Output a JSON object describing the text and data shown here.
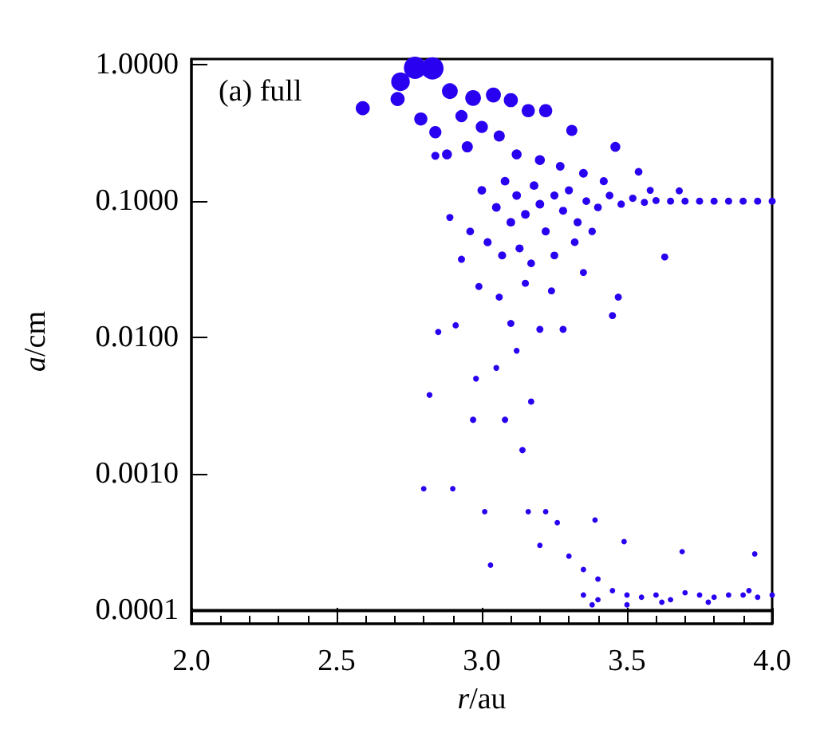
{
  "chart_data": {
    "type": "bubble",
    "xlabel": "r/au",
    "ylabel": "a/cm",
    "annotations": [
      "(a) full"
    ],
    "log": "y",
    "xlim": [
      2.0,
      4.0
    ],
    "xticks": [
      {
        "value": 2.0,
        "label": "2.0"
      },
      {
        "value": 2.5,
        "label": "2.5"
      },
      {
        "value": 3.0,
        "label": "3.0"
      },
      {
        "value": 3.5,
        "label": "3.5"
      },
      {
        "value": 4.0,
        "label": "4.0"
      }
    ],
    "ylim": [
      8e-05,
      1.1
    ],
    "yticks": [
      {
        "value": 0.0001,
        "label": "0.0001"
      },
      {
        "value": 0.001,
        "label": "0.0010"
      },
      {
        "value": 0.01,
        "label": "0.0100"
      },
      {
        "value": 0.1,
        "label": "0.1000"
      },
      {
        "value": 1,
        "label": "1.0000"
      }
    ],
    "grid": false,
    "marker": "circle",
    "ref_lines": [
      {
        "axis": "y",
        "value": 0.0001,
        "color": "#000000"
      }
    ],
    "series": [
      {
        "color": "#2a00f0",
        "x": [
          2.77,
          2.83,
          2.72,
          2.59,
          2.71,
          2.79,
          2.84,
          2.89,
          2.97,
          3.04,
          3.1,
          3.16,
          3.22,
          3.31,
          3.46,
          2.93,
          3.0,
          3.06,
          2.95,
          2.88,
          3.12,
          3.2,
          3.27,
          3.35,
          3.42,
          3.54,
          3.68,
          3.58,
          3.0,
          3.05,
          3.08,
          3.1,
          3.12,
          3.15,
          3.18,
          3.2,
          3.22,
          3.25,
          3.28,
          3.3,
          3.33,
          3.36,
          3.4,
          3.44,
          3.48,
          3.52,
          3.56,
          3.6,
          3.65,
          3.7,
          3.75,
          3.8,
          3.85,
          3.9,
          3.95,
          4.0,
          3.02,
          3.07,
          3.13,
          3.17,
          3.25,
          3.32,
          3.38,
          2.99,
          3.06,
          3.1,
          3.2,
          3.28,
          3.45,
          3.47,
          3.63,
          2.93,
          2.89,
          2.84,
          2.85,
          2.91,
          3.15,
          3.24,
          3.35,
          2.96,
          2.82,
          2.97,
          3.08,
          3.17,
          3.14,
          2.98,
          3.05,
          3.12,
          2.8,
          2.9,
          3.01,
          3.16,
          3.22,
          3.03,
          3.26,
          3.39,
          3.49,
          3.69,
          3.94,
          3.2,
          3.3,
          3.35,
          3.4,
          3.35,
          3.4,
          3.45,
          3.5,
          3.55,
          3.6,
          3.65,
          3.7,
          3.75,
          3.8,
          3.85,
          3.9,
          3.95,
          4.0,
          3.38,
          3.5,
          3.62,
          3.78,
          3.92
        ],
        "values": [
          0.95,
          0.94,
          0.75,
          0.48,
          0.56,
          0.4,
          0.32,
          0.64,
          0.57,
          0.6,
          0.55,
          0.46,
          0.46,
          0.33,
          0.25,
          0.42,
          0.35,
          0.3,
          0.25,
          0.22,
          0.22,
          0.2,
          0.18,
          0.16,
          0.14,
          0.164,
          0.119,
          0.12,
          0.12,
          0.09,
          0.14,
          0.07,
          0.11,
          0.08,
          0.13,
          0.095,
          0.06,
          0.11,
          0.085,
          0.12,
          0.07,
          0.1,
          0.09,
          0.11,
          0.095,
          0.105,
          0.098,
          0.101,
          0.1,
          0.1,
          0.1,
          0.1,
          0.1,
          0.1,
          0.1,
          0.1,
          0.05,
          0.04,
          0.045,
          0.035,
          0.04,
          0.05,
          0.06,
          0.0237,
          0.0198,
          0.0127,
          0.0115,
          0.0115,
          0.0145,
          0.0198,
          0.039,
          0.0375,
          0.076,
          0.215,
          0.011,
          0.0123,
          0.025,
          0.022,
          0.03,
          0.06,
          0.0038,
          0.0025,
          0.0025,
          0.0034,
          0.0015,
          0.005,
          0.006,
          0.008,
          0.00078,
          0.00078,
          0.00053,
          0.00053,
          0.00053,
          0.000215,
          0.00044,
          0.00046,
          0.00032,
          0.00027,
          0.00026,
          0.0003,
          0.00025,
          0.0002,
          0.00017,
          0.00013,
          0.00012,
          0.00014,
          0.00013,
          0.000125,
          0.00013,
          0.00012,
          0.000135,
          0.00013,
          0.000125,
          0.00013,
          0.00013,
          0.000125,
          0.00013,
          0.00011,
          0.00011,
          0.000115,
          0.000115,
          0.00014
        ],
        "sizes": [
          1,
          1,
          0.7,
          0.4,
          0.4,
          0.35,
          0.3,
          0.5,
          0.5,
          0.45,
          0.4,
          0.35,
          0.35,
          0.25,
          0.2,
          0.3,
          0.3,
          0.25,
          0.25,
          0.2,
          0.2,
          0.2,
          0.15,
          0.15,
          0.13,
          0.12,
          0.1,
          0.1,
          0.15,
          0.15,
          0.15,
          0.15,
          0.15,
          0.15,
          0.15,
          0.15,
          0.13,
          0.13,
          0.13,
          0.13,
          0.13,
          0.12,
          0.12,
          0.12,
          0.11,
          0.11,
          0.1,
          0.1,
          0.1,
          0.1,
          0.1,
          0.1,
          0.1,
          0.1,
          0.1,
          0.1,
          0.13,
          0.13,
          0.13,
          0.12,
          0.12,
          0.12,
          0.11,
          0.1,
          0.1,
          0.1,
          0.1,
          0.1,
          0.1,
          0.1,
          0.1,
          0.1,
          0.1,
          0.13,
          0.08,
          0.08,
          0.1,
          0.1,
          0.1,
          0.12,
          0.07,
          0.08,
          0.08,
          0.08,
          0.08,
          0.07,
          0.07,
          0.07,
          0.06,
          0.06,
          0.06,
          0.06,
          0.06,
          0.06,
          0.06,
          0.06,
          0.06,
          0.06,
          0.06,
          0.06,
          0.06,
          0.06,
          0.06,
          0.06,
          0.06,
          0.06,
          0.06,
          0.06,
          0.06,
          0.06,
          0.06,
          0.06,
          0.06,
          0.06,
          0.06,
          0.06,
          0.06,
          0.06,
          0.06,
          0.06,
          0.06,
          0.06
        ]
      }
    ]
  }
}
